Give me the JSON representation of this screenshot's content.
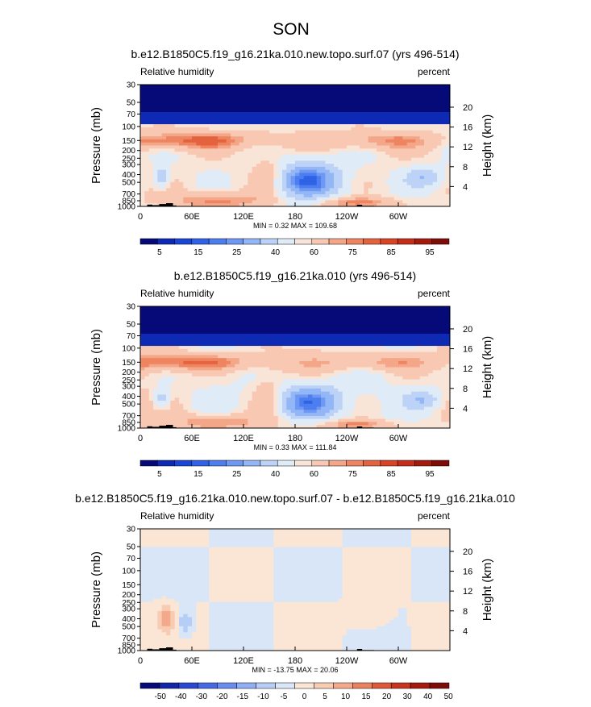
{
  "figure": {
    "season": "SON"
  },
  "chart_data": [
    {
      "type": "heatmap",
      "title": "b.e12.B1850C5.f19_g16.21ka.010.new.topo.surf.07 (yrs 496-514)",
      "left_label": "Relative humidity",
      "right_label": "percent",
      "ylabel": "Pressure (mb)",
      "ylabel_right": "Height (km)",
      "x_ticks": [
        "0",
        "60E",
        "120E",
        "180",
        "120W",
        "60W"
      ],
      "x_tick_lon": [
        0,
        60,
        120,
        180,
        240,
        300
      ],
      "xlim": [
        0,
        360
      ],
      "p_ticks": [
        "30",
        "50",
        "70",
        "100",
        "150",
        "200",
        "250",
        "300",
        "400",
        "500",
        "700",
        "850",
        "1000"
      ],
      "p_tick_values": [
        30,
        50,
        70,
        100,
        150,
        200,
        250,
        300,
        400,
        500,
        700,
        850,
        1000
      ],
      "ylim": [
        30,
        1000
      ],
      "h_ticks": [
        "20",
        "16",
        "12",
        "8",
        "4"
      ],
      "h_tick_values": [
        20,
        16,
        12,
        8,
        4
      ],
      "stats": "MIN =   0.32  MAX = 109.68",
      "colorbar": {
        "tick_labels": [
          "5",
          "15",
          "25",
          "40",
          "60",
          "75",
          "85",
          "95"
        ],
        "colors": [
          "#050a78",
          "#0e2ab4",
          "#1a46d6",
          "#2f62e6",
          "#4d7ef0",
          "#6e98f4",
          "#93b6f6",
          "#bcd2f7",
          "#e0ebf8",
          "#f9e4d8",
          "#f8c8b2",
          "#f4a688",
          "#ee8460",
          "#e4623e",
          "#d84526",
          "#c52d18",
          "#a61a0e",
          "#7e0c07"
        ]
      },
      "field_kind": "rh_a"
    },
    {
      "type": "heatmap",
      "title": "b.e12.B1850C5.f19_g16.21ka.010 (yrs 496-514)",
      "left_label": "Relative humidity",
      "right_label": "percent",
      "ylabel": "Pressure (mb)",
      "ylabel_right": "Height (km)",
      "x_ticks": [
        "0",
        "60E",
        "120E",
        "180",
        "120W",
        "60W"
      ],
      "x_tick_lon": [
        0,
        60,
        120,
        180,
        240,
        300
      ],
      "xlim": [
        0,
        360
      ],
      "p_ticks": [
        "30",
        "50",
        "70",
        "100",
        "150",
        "200",
        "250",
        "300",
        "400",
        "500",
        "700",
        "850",
        "1000"
      ],
      "p_tick_values": [
        30,
        50,
        70,
        100,
        150,
        200,
        250,
        300,
        400,
        500,
        700,
        850,
        1000
      ],
      "ylim": [
        30,
        1000
      ],
      "h_ticks": [
        "20",
        "16",
        "12",
        "8",
        "4"
      ],
      "h_tick_values": [
        20,
        16,
        12,
        8,
        4
      ],
      "stats": "MIN =   0.33  MAX = 111.84",
      "colorbar": {
        "tick_labels": [
          "5",
          "15",
          "25",
          "40",
          "60",
          "75",
          "85",
          "95"
        ],
        "colors": [
          "#050a78",
          "#0e2ab4",
          "#1a46d6",
          "#2f62e6",
          "#4d7ef0",
          "#6e98f4",
          "#93b6f6",
          "#bcd2f7",
          "#e0ebf8",
          "#f9e4d8",
          "#f8c8b2",
          "#f4a688",
          "#ee8460",
          "#e4623e",
          "#d84526",
          "#c52d18",
          "#a61a0e",
          "#7e0c07"
        ]
      },
      "field_kind": "rh_b"
    },
    {
      "type": "heatmap",
      "title": "b.e12.B1850C5.f19_g16.21ka.010.new.topo.surf.07 - b.e12.B1850C5.f19_g16.21ka.010",
      "left_label": "Relative humidity",
      "right_label": "percent",
      "ylabel": "Pressure (mb)",
      "ylabel_right": "Height (km)",
      "x_ticks": [
        "0",
        "60E",
        "120E",
        "180",
        "120W",
        "60W"
      ],
      "x_tick_lon": [
        0,
        60,
        120,
        180,
        240,
        300
      ],
      "xlim": [
        0,
        360
      ],
      "p_ticks": [
        "30",
        "50",
        "70",
        "100",
        "150",
        "200",
        "250",
        "300",
        "400",
        "500",
        "700",
        "850",
        "1000"
      ],
      "p_tick_values": [
        30,
        50,
        70,
        100,
        150,
        200,
        250,
        300,
        400,
        500,
        700,
        850,
        1000
      ],
      "ylim": [
        30,
        1000
      ],
      "h_ticks": [
        "20",
        "16",
        "12",
        "8",
        "4"
      ],
      "h_tick_values": [
        20,
        16,
        12,
        8,
        4
      ],
      "stats": "MIN = -13.75  MAX =  20.06",
      "colorbar": {
        "tick_labels": [
          "-50",
          "-40",
          "-30",
          "-20",
          "-15",
          "-10",
          "-5",
          "0",
          "5",
          "10",
          "15",
          "20",
          "30",
          "40",
          "50"
        ],
        "colors": [
          "#050a78",
          "#1426a8",
          "#2a48d0",
          "#4668e2",
          "#6a8cee",
          "#90aef4",
          "#b6cdf6",
          "#d8e6f8",
          "#fbe6d6",
          "#f8ccb2",
          "#f4aa8a",
          "#ea8260",
          "#dc5a3a",
          "#c83420",
          "#a61a0e",
          "#7e0c07"
        ]
      },
      "field_kind": "diff"
    }
  ]
}
